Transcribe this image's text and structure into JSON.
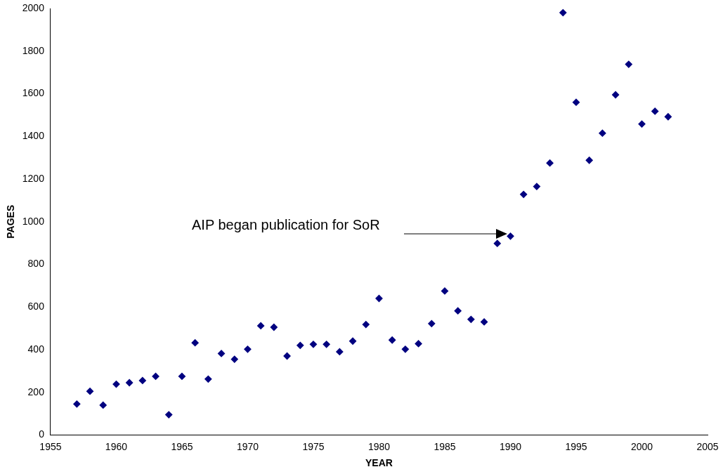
{
  "chart_data": {
    "type": "scatter",
    "xlabel": "YEAR",
    "ylabel": "PAGES",
    "marker": "diamond",
    "legend": false,
    "grid": false,
    "x": [
      1957,
      1958,
      1959,
      1960,
      1961,
      1962,
      1963,
      1964,
      1965,
      1966,
      1967,
      1968,
      1969,
      1970,
      1971,
      1972,
      1973,
      1974,
      1975,
      1976,
      1977,
      1978,
      1979,
      1980,
      1981,
      1982,
      1983,
      1984,
      1985,
      1986,
      1987,
      1988,
      1989,
      1990,
      1991,
      1992,
      1993,
      1994,
      1995,
      1996,
      1997,
      1998,
      1999,
      2000,
      2001,
      2002
    ],
    "series": [
      {
        "color": "#000080",
        "values": [
          145,
          205,
          140,
          238,
          245,
          255,
          275,
          95,
          275,
          432,
          262,
          382,
          355,
          402,
          512,
          505,
          370,
          420,
          425,
          425,
          390,
          440,
          518,
          640,
          445,
          402,
          428,
          522,
          675,
          582,
          542,
          530,
          898,
          932,
          1128,
          1165,
          1275,
          1980,
          1560,
          1288,
          1415,
          1595,
          1738,
          1458,
          1518,
          1492
        ]
      }
    ],
    "xlim": [
      1955,
      2005
    ],
    "xticks": [
      1955,
      1960,
      1965,
      1970,
      1975,
      1980,
      1985,
      1990,
      1995,
      2000,
      2005
    ],
    "ylim": [
      0,
      2000
    ],
    "yticks": [
      0,
      200,
      400,
      600,
      800,
      1000,
      1200,
      1400,
      1600,
      1800,
      2000
    ],
    "annotations": [
      "AIP began publication for SoR"
    ]
  }
}
